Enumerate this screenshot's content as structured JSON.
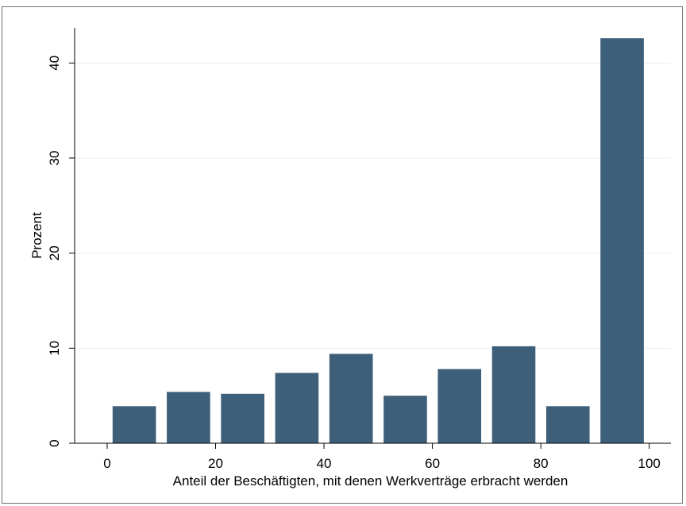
{
  "chart_data": {
    "type": "bar",
    "bar_color": "#3e5f7a",
    "grid_color": "#e8eef2",
    "grid": true,
    "xlabel": "Anteil der Beschäftigten, mit denen Werkverträge erbracht werden",
    "ylabel": "Prozent",
    "xlim": [
      -6,
      104
    ],
    "ylim": [
      0,
      43.7
    ],
    "xticks": [
      0,
      20,
      40,
      60,
      80,
      100
    ],
    "yticks": [
      0,
      10,
      20,
      30,
      40
    ],
    "bars": [
      {
        "x0": 1,
        "x1": 9,
        "value": 3.9
      },
      {
        "x0": 11,
        "x1": 19,
        "value": 5.4
      },
      {
        "x0": 21,
        "x1": 29,
        "value": 5.2
      },
      {
        "x0": 31,
        "x1": 39,
        "value": 7.4
      },
      {
        "x0": 41,
        "x1": 49,
        "value": 9.4
      },
      {
        "x0": 51,
        "x1": 59,
        "value": 5.0
      },
      {
        "x0": 61,
        "x1": 69,
        "value": 7.8
      },
      {
        "x0": 71,
        "x1": 79,
        "value": 10.2
      },
      {
        "x0": 81,
        "x1": 89,
        "value": 3.9
      },
      {
        "x0": 91,
        "x1": 99,
        "value": 42.6
      }
    ]
  }
}
